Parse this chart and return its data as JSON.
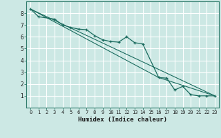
{
  "title": "",
  "xlabel": "Humidex (Indice chaleur)",
  "bg_color": "#cce8e4",
  "grid_color": "#ffffff",
  "line_color": "#1a6b5e",
  "xlim": [
    -0.5,
    23.5
  ],
  "ylim": [
    0,
    9
  ],
  "xticks": [
    0,
    1,
    2,
    3,
    4,
    5,
    6,
    7,
    8,
    9,
    10,
    11,
    12,
    13,
    14,
    15,
    16,
    17,
    18,
    19,
    20,
    21,
    22,
    23
  ],
  "yticks": [
    1,
    2,
    3,
    4,
    5,
    6,
    7,
    8
  ],
  "series": [
    [
      0,
      8.35
    ],
    [
      1,
      7.7
    ],
    [
      3,
      7.5
    ],
    [
      4,
      7.0
    ],
    [
      5,
      6.8
    ],
    [
      6,
      6.65
    ],
    [
      7,
      6.6
    ],
    [
      8,
      6.1
    ],
    [
      9,
      5.75
    ],
    [
      10,
      5.6
    ],
    [
      11,
      5.55
    ],
    [
      12,
      6.0
    ],
    [
      13,
      5.5
    ],
    [
      14,
      5.4
    ],
    [
      16,
      2.55
    ],
    [
      17,
      2.5
    ],
    [
      18,
      1.5
    ],
    [
      19,
      1.8
    ],
    [
      20,
      1.1
    ],
    [
      21,
      1.0
    ],
    [
      22,
      1.0
    ],
    [
      23,
      1.0
    ]
  ],
  "line1": [
    [
      0,
      8.35
    ],
    [
      23,
      1.0
    ]
  ],
  "line2": [
    [
      0,
      8.35
    ],
    [
      16,
      2.55
    ]
  ],
  "line3": [
    [
      16,
      2.55
    ],
    [
      23,
      1.0
    ]
  ]
}
